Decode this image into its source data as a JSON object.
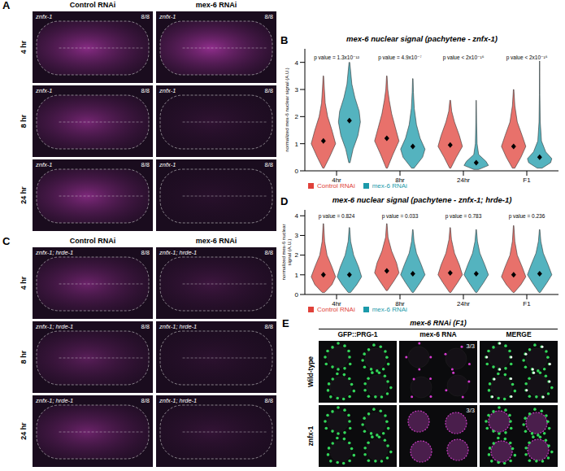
{
  "chart_data": [
    {
      "panel": "B",
      "type": "violin",
      "title": "mex-6 nuclear signal (pachytene - znfx-1)",
      "y_label": "normalized mex-6 nuclear signal (A.U.)",
      "categories": [
        "4hr",
        "8hr",
        "24hr",
        "F1"
      ],
      "ylim": [
        0,
        4.5
      ],
      "yticks": [
        0,
        1,
        2,
        3,
        4
      ],
      "grid": false,
      "legend": "bottom-left",
      "annotations": [
        "p value = 1.3x10⁻¹²",
        "p value = 4.9x10⁻⁷",
        "p value < 2x10⁻¹⁶",
        "p value < 2x10⁻¹⁶"
      ],
      "series": [
        {
          "name": "Control RNAi",
          "color": "#e0413a",
          "values": [
            1.1,
            1.2,
            0.95,
            0.9
          ],
          "density": [
            [
              [
                0.1,
                0.05
              ],
              [
                0.5,
                0.5
              ],
              [
                1.0,
                1.0
              ],
              [
                1.5,
                0.7
              ],
              [
                2.0,
                0.35
              ],
              [
                2.5,
                0.15
              ],
              [
                3.0,
                0.08
              ],
              [
                3.5,
                0.02
              ]
            ],
            [
              [
                0.1,
                0.05
              ],
              [
                0.6,
                0.5
              ],
              [
                1.1,
                1.0
              ],
              [
                1.6,
                0.7
              ],
              [
                2.1,
                0.4
              ],
              [
                2.6,
                0.2
              ],
              [
                3.0,
                0.08
              ],
              [
                3.5,
                0.02
              ]
            ],
            [
              [
                0.1,
                0.05
              ],
              [
                0.5,
                0.5
              ],
              [
                0.9,
                1.0
              ],
              [
                1.3,
                0.75
              ],
              [
                1.8,
                0.35
              ],
              [
                2.2,
                0.12
              ],
              [
                2.6,
                0.03
              ]
            ],
            [
              [
                0.1,
                0.1
              ],
              [
                0.5,
                0.6
              ],
              [
                0.9,
                1.0
              ],
              [
                1.3,
                0.7
              ],
              [
                1.8,
                0.3
              ],
              [
                2.4,
                0.1
              ],
              [
                3.0,
                0.02
              ]
            ]
          ]
        },
        {
          "name": "mex-6 RNAi",
          "color": "#1b9aaa",
          "values": [
            1.85,
            0.9,
            0.3,
            0.5
          ],
          "density": [
            [
              [
                0.3,
                0.05
              ],
              [
                0.8,
                0.3
              ],
              [
                1.3,
                0.7
              ],
              [
                1.8,
                0.9
              ],
              [
                2.2,
                0.8
              ],
              [
                2.7,
                0.45
              ],
              [
                3.2,
                0.2
              ],
              [
                4.0,
                0.03
              ]
            ],
            [
              [
                0.1,
                0.1
              ],
              [
                0.5,
                0.8
              ],
              [
                0.8,
                1.0
              ],
              [
                1.2,
                0.6
              ],
              [
                1.7,
                0.3
              ],
              [
                2.3,
                0.12
              ],
              [
                2.9,
                0.05
              ],
              [
                3.4,
                0.02
              ]
            ],
            [
              [
                0.05,
                0.2
              ],
              [
                0.2,
                1.0
              ],
              [
                0.35,
                0.8
              ],
              [
                0.6,
                0.2
              ],
              [
                1.0,
                0.07
              ],
              [
                1.8,
                0.03
              ],
              [
                2.6,
                0.01
              ]
            ],
            [
              [
                0.1,
                0.2
              ],
              [
                0.3,
                0.9
              ],
              [
                0.45,
                1.0
              ],
              [
                0.7,
                0.5
              ],
              [
                1.1,
                0.15
              ],
              [
                1.8,
                0.05
              ],
              [
                2.8,
                0.02
              ],
              [
                4.05,
                0.01
              ]
            ]
          ]
        }
      ]
    },
    {
      "panel": "D",
      "type": "violin",
      "title": "mex-6 nuclear signal (pachytene - znfx-1; hrde-1)",
      "y_label": "normalized mex-6 nuclear signal (A.U.)",
      "categories": [
        "4hr",
        "8hr",
        "24hr",
        "F1"
      ],
      "ylim": [
        0,
        4.3
      ],
      "yticks": [
        0,
        1,
        2,
        3,
        4
      ],
      "grid": false,
      "legend": "bottom-left",
      "annotations": [
        "p value = 0.824",
        "p value = 0.033",
        "p value = 0.783",
        "p value = 0.236"
      ],
      "series": [
        {
          "name": "Control RNAi",
          "color": "#e0413a",
          "values": [
            1.0,
            1.2,
            1.1,
            1.0
          ],
          "density": [
            [
              [
                0.1,
                0.1
              ],
              [
                0.5,
                0.7
              ],
              [
                0.9,
                1.0
              ],
              [
                1.4,
                0.7
              ],
              [
                2.0,
                0.3
              ],
              [
                2.7,
                0.1
              ],
              [
                3.6,
                0.02
              ]
            ],
            [
              [
                0.2,
                0.05
              ],
              [
                0.7,
                0.6
              ],
              [
                1.1,
                1.0
              ],
              [
                1.6,
                0.8
              ],
              [
                2.2,
                0.4
              ],
              [
                2.9,
                0.1
              ],
              [
                3.6,
                0.02
              ]
            ],
            [
              [
                0.1,
                0.05
              ],
              [
                0.6,
                0.6
              ],
              [
                1.0,
                1.0
              ],
              [
                1.5,
                0.75
              ],
              [
                2.1,
                0.35
              ],
              [
                2.8,
                0.1
              ],
              [
                3.4,
                0.02
              ]
            ],
            [
              [
                0.1,
                0.05
              ],
              [
                0.5,
                0.6
              ],
              [
                0.9,
                1.0
              ],
              [
                1.4,
                0.7
              ],
              [
                2.0,
                0.3
              ],
              [
                2.7,
                0.1
              ],
              [
                3.5,
                0.02
              ]
            ]
          ]
        },
        {
          "name": "mex-6 RNAi",
          "color": "#1b9aaa",
          "values": [
            1.0,
            1.05,
            1.05,
            1.05
          ],
          "density": [
            [
              [
                0.1,
                0.1
              ],
              [
                0.5,
                0.6
              ],
              [
                0.9,
                1.0
              ],
              [
                1.4,
                0.75
              ],
              [
                2.0,
                0.35
              ],
              [
                2.7,
                0.1
              ],
              [
                3.4,
                0.02
              ]
            ],
            [
              [
                0.1,
                0.05
              ],
              [
                0.6,
                0.6
              ],
              [
                1.0,
                1.0
              ],
              [
                1.5,
                0.7
              ],
              [
                2.1,
                0.3
              ],
              [
                2.7,
                0.1
              ],
              [
                3.3,
                0.02
              ]
            ],
            [
              [
                0.1,
                0.05
              ],
              [
                0.6,
                0.6
              ],
              [
                1.0,
                1.0
              ],
              [
                1.5,
                0.7
              ],
              [
                2.1,
                0.3
              ],
              [
                2.7,
                0.1
              ],
              [
                3.3,
                0.02
              ]
            ],
            [
              [
                0.1,
                0.05
              ],
              [
                0.6,
                0.6
              ],
              [
                1.0,
                1.0
              ],
              [
                1.5,
                0.7
              ],
              [
                2.1,
                0.3
              ],
              [
                2.7,
                0.1
              ],
              [
                3.3,
                0.02
              ]
            ]
          ]
        }
      ]
    }
  ],
  "image_panels": [
    {
      "panel": "A",
      "columns": [
        "Control RNAi",
        "mex-6 RNAi"
      ],
      "rows": [
        "4 hr",
        "8 hr",
        "24 hr"
      ],
      "genotype": "znfx-1",
      "count": "8/8"
    },
    {
      "panel": "C",
      "columns": [
        "Control RNAi",
        "mex-6 RNAi"
      ],
      "rows": [
        "4 hr",
        "8 hr",
        "24 hr"
      ],
      "genotype": "znfx-1; hrde-1",
      "count": "8/8"
    },
    {
      "panel": "E",
      "title": "mex-6 RNAi (F1)",
      "columns": [
        "GFP::PRG-1",
        "mex-6 RNA",
        "MERGE"
      ],
      "rows": [
        "Wild-type",
        "znfx-1"
      ],
      "count": "3/3"
    }
  ]
}
